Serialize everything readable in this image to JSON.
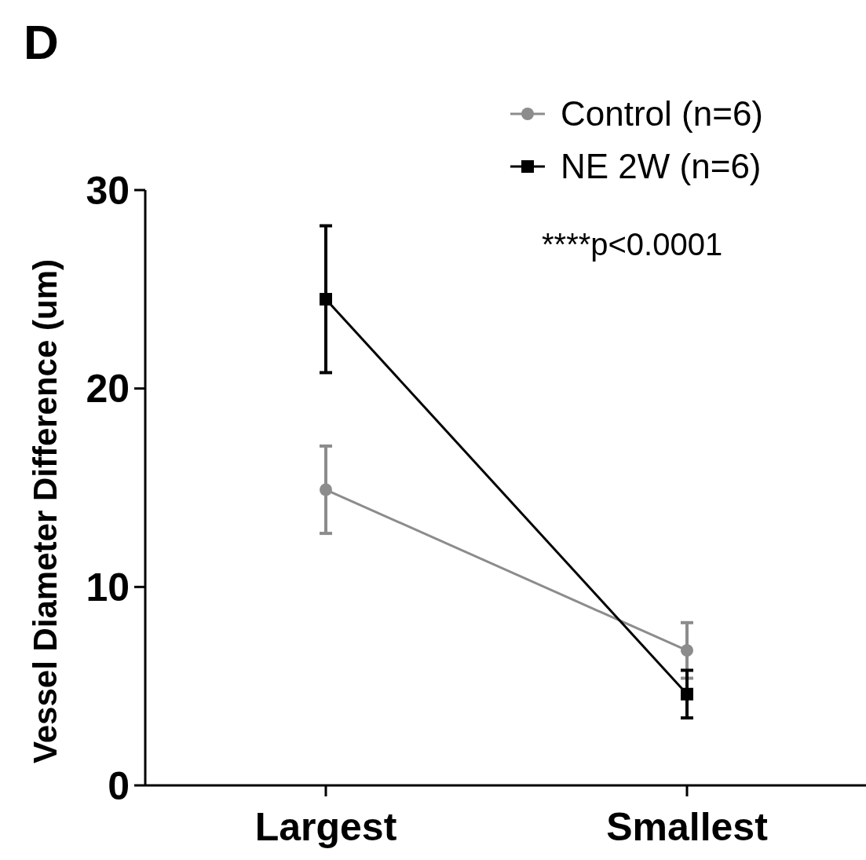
{
  "chart_data": {
    "type": "line",
    "title": "D",
    "ylabel": "Vessel Diameter Difference (um)",
    "categories": [
      "Largest",
      "Smallest"
    ],
    "series": [
      {
        "name": "Control (n=6)",
        "color": "#8c8c8c",
        "marker": "circle",
        "values": [
          14.9,
          6.8
        ],
        "errors": [
          2.2,
          1.4
        ]
      },
      {
        "name": "NE 2W (n=6)",
        "color": "#000000",
        "marker": "square",
        "values": [
          24.5,
          4.6
        ],
        "errors": [
          3.7,
          1.2
        ]
      }
    ],
    "ylim": [
      0,
      30
    ],
    "yticks": [
      0,
      10,
      20,
      30
    ],
    "grid": false,
    "legend": "top right",
    "annotations": [
      "****p<0.0001"
    ]
  }
}
